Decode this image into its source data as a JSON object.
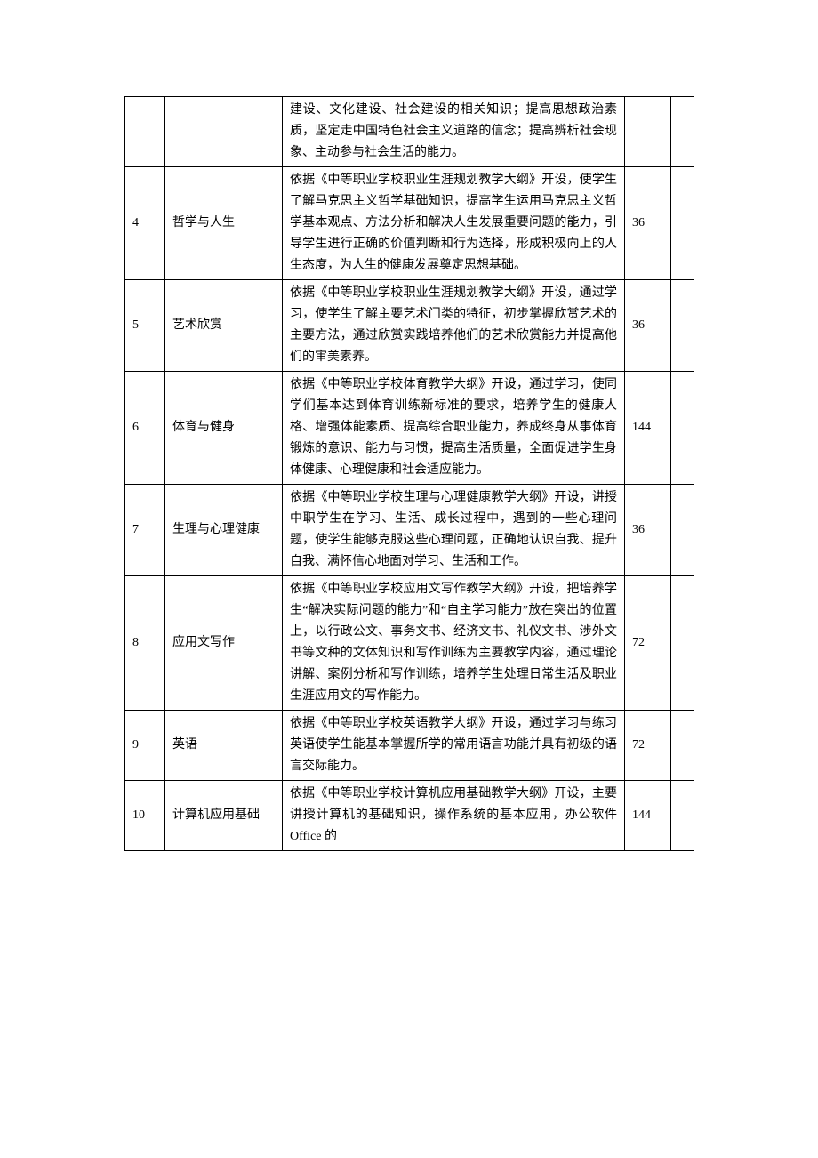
{
  "tableStyle": {
    "borderColor": "#000000",
    "fontSize": 14,
    "lineHeight": 24,
    "textColor": "#000000",
    "backgroundColor": "#ffffff",
    "fontFamily": "SimSun"
  },
  "columnWidths": {
    "num": 45,
    "name": 132,
    "desc": 385,
    "hours": 52,
    "last": 26
  },
  "rows": [
    {
      "num": "",
      "name": "",
      "desc": "建设、文化建设、社会建设的相关知识；提高思想政治素质，坚定走中国特色社会主义道路的信念；提高辨析社会现象、主动参与社会生活的能力。",
      "hours": "",
      "last": ""
    },
    {
      "num": "4",
      "name": "哲学与人生",
      "desc": "依据《中等职业学校职业生涯规划教学大纲》开设，使学生了解马克思主义哲学基础知识，提高学生运用马克思主义哲学基本观点、方法分析和解决人生发展重要问题的能力，引导学生进行正确的价值判断和行为选择，形成积极向上的人生态度，为人生的健康发展奠定思想基础。",
      "hours": "36",
      "last": ""
    },
    {
      "num": "5",
      "name": "艺术欣赏",
      "desc": "依据《中等职业学校职业生涯规划教学大纲》开设，通过学习，使学生了解主要艺术门类的特征，初步掌握欣赏艺术的主要方法，通过欣赏实践培养他们的艺术欣赏能力并提高他们的审美素养。",
      "hours": "36",
      "last": ""
    },
    {
      "num": "6",
      "name": "体育与健身",
      "desc": "依据《中等职业学校体育教学大纲》开设，通过学习，使同学们基本达到体育训练新标准的要求，培养学生的健康人格、增强体能素质、提高综合职业能力，养成终身从事体育锻炼的意识、能力与习惯，提高生活质量，全面促进学生身体健康、心理健康和社会适应能力。",
      "hours": "144",
      "last": ""
    },
    {
      "num": "7",
      "name": "生理与心理健康",
      "desc": "依据《中等职业学校生理与心理健康教学大纲》开设，讲授中职学生在学习、生活、成长过程中，遇到的一些心理问题，使学生能够克服这些心理问题，正确地认识自我、提升自我、满怀信心地面对学习、生活和工作。",
      "hours": "36",
      "last": ""
    },
    {
      "num": "8",
      "name": "应用文写作",
      "desc": "依据《中等职业学校应用文写作教学大纲》开设，把培养学生“解决实际问题的能力”和“自主学习能力”放在突出的位置上，以行政公文、事务文书、经济文书、礼仪文书、涉外文书等文种的文体知识和写作训练为主要教学内容，通过理论讲解、案例分析和写作训练，培养学生处理日常生活及职业生涯应用文的写作能力。",
      "hours": "72",
      "last": ""
    },
    {
      "num": "9",
      "name": "英语",
      "desc": "依据《中等职业学校英语教学大纲》开设，通过学习与练习英语使学生能基本掌握所学的常用语言功能并具有初级的语言交际能力。",
      "hours": "72",
      "last": ""
    },
    {
      "num": "10",
      "name": "计算机应用基础",
      "desc": "依据《中等职业学校计算机应用基础教学大纲》开设，主要讲授计算机的基础知识，操作系统的基本应用，办公软件 Office 的",
      "hours": "144",
      "last": ""
    }
  ]
}
